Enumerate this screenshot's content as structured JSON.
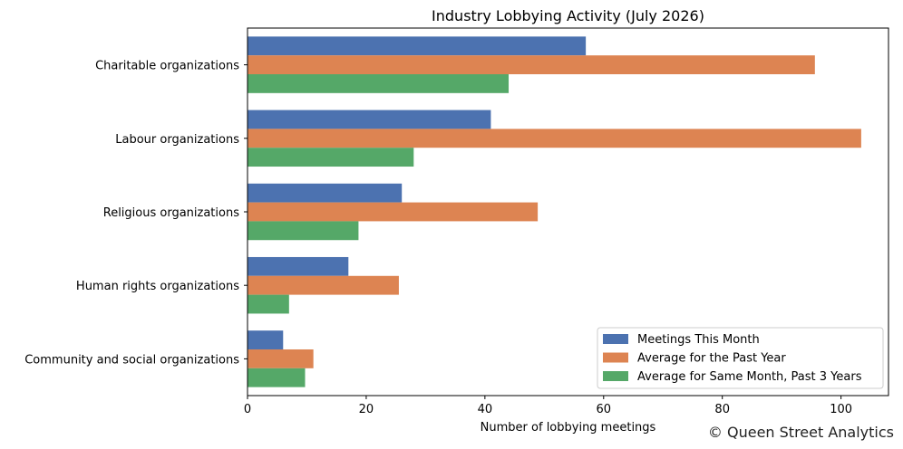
{
  "chart_data": {
    "type": "bar",
    "orientation": "horizontal",
    "title": "Industry Lobbying Activity (July 2026)",
    "xlabel": "Number of lobbying meetings",
    "ylabel": "",
    "xlim": [
      0,
      108
    ],
    "xticks": [
      0,
      20,
      40,
      60,
      80,
      100
    ],
    "categories": [
      "Charitable organizations",
      "Labour organizations",
      "Religious organizations",
      "Human rights organizations",
      "Community and social organizations"
    ],
    "series": [
      {
        "name": "Meetings This Month",
        "color": "#4c72b0",
        "values": [
          57,
          41,
          26,
          17,
          6
        ]
      },
      {
        "name": "Average for the Past Year",
        "color": "#dd8452",
        "values": [
          95.6,
          103.4,
          48.9,
          25.5,
          11.1
        ]
      },
      {
        "name": "Average for Same Month, Past 3 Years",
        "color": "#55a868",
        "values": [
          44,
          28,
          18.7,
          7,
          9.7
        ]
      }
    ],
    "grid": false,
    "legend_position": "lower-right"
  },
  "credit": "© Queen Street Analytics"
}
